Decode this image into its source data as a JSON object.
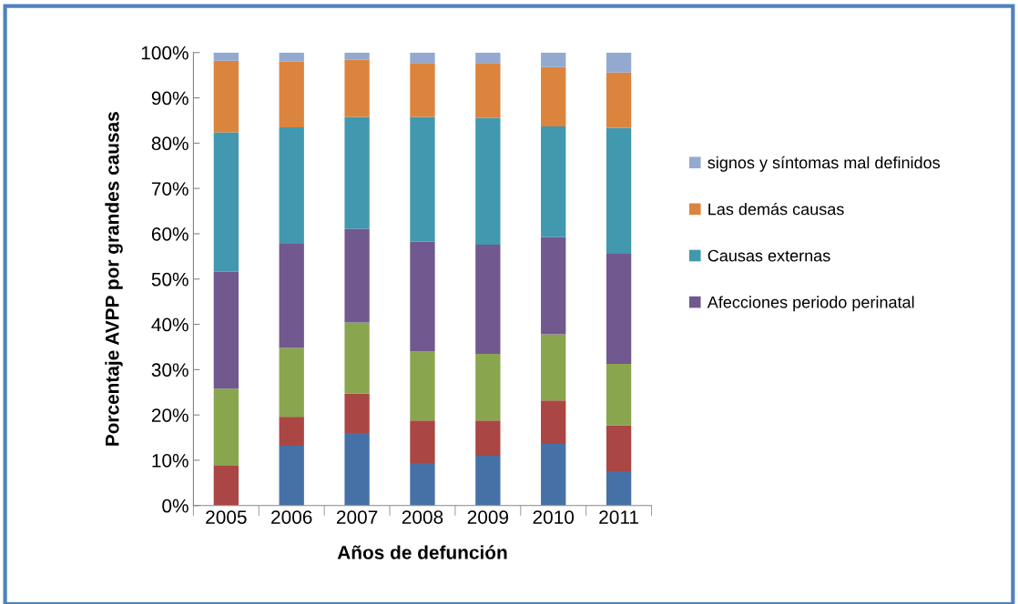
{
  "chart_data": {
    "type": "bar",
    "stacked": true,
    "xlabel": "Años de defunción",
    "ylabel": "Porcentaje AVPP por grandes causas",
    "categories": [
      "2005",
      "2006",
      "2007",
      "2008",
      "2009",
      "2010",
      "2011"
    ],
    "series": [
      {
        "color": "#4571a7",
        "values": [
          0,
          13.2,
          16,
          9.4,
          11,
          13.6,
          7.6
        ]
      },
      {
        "color": "#aa4644",
        "values": [
          8.8,
          6.4,
          8.7,
          9.4,
          7.8,
          9.6,
          10.1
        ]
      },
      {
        "color": "#89a54e",
        "values": [
          17,
          15.2,
          15.7,
          15.2,
          14.7,
          14.6,
          13.6
        ]
      },
      {
        "name": "Afecciones periodo perinatal",
        "color": "#71588f",
        "values": [
          25.8,
          23,
          20.7,
          24.3,
          24.1,
          21.5,
          24.3
        ]
      },
      {
        "name": "Causas externas",
        "color": "#4198af",
        "values": [
          30.8,
          25.7,
          24.7,
          27.5,
          28,
          24.4,
          27.8
        ]
      },
      {
        "name": "Las demás causas",
        "color": "#db843d",
        "values": [
          15.8,
          14.5,
          12.6,
          11.9,
          12.1,
          13.1,
          12.2
        ]
      },
      {
        "name": "signos y síntomas mal definidos",
        "color": "#93a9cf",
        "values": [
          1.8,
          2,
          1.6,
          2.3,
          2.3,
          3.2,
          4.4
        ]
      }
    ],
    "ylim": [
      0,
      100
    ],
    "yticks": [
      {
        "value": 0,
        "label": "0%"
      },
      {
        "value": 10,
        "label": "10%"
      },
      {
        "value": 20,
        "label": "20%"
      },
      {
        "value": 30,
        "label": "30%"
      },
      {
        "value": 40,
        "label": "40%"
      },
      {
        "value": 50,
        "label": "50%"
      },
      {
        "value": 60,
        "label": "60%"
      },
      {
        "value": 70,
        "label": "70%"
      },
      {
        "value": 80,
        "label": "80%"
      },
      {
        "value": 90,
        "label": "90%"
      },
      {
        "value": 100,
        "label": "100%"
      }
    ],
    "grid": false,
    "legend": "right"
  }
}
